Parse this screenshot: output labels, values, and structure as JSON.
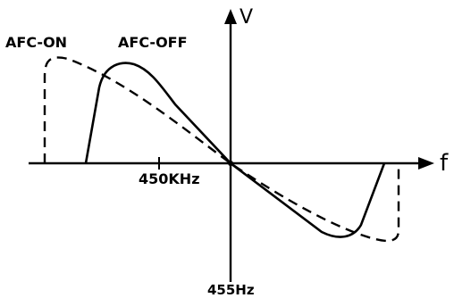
{
  "diagram": {
    "axes": {
      "y_label": "V",
      "x_label": "f",
      "center_label": "450KHz",
      "bottom_label": "455Hz"
    },
    "curves": [
      {
        "label": "AFC-ON",
        "style": "dashed",
        "color": "#000000"
      },
      {
        "label": "AFC-OFF",
        "style": "solid",
        "color": "#000000"
      }
    ]
  }
}
